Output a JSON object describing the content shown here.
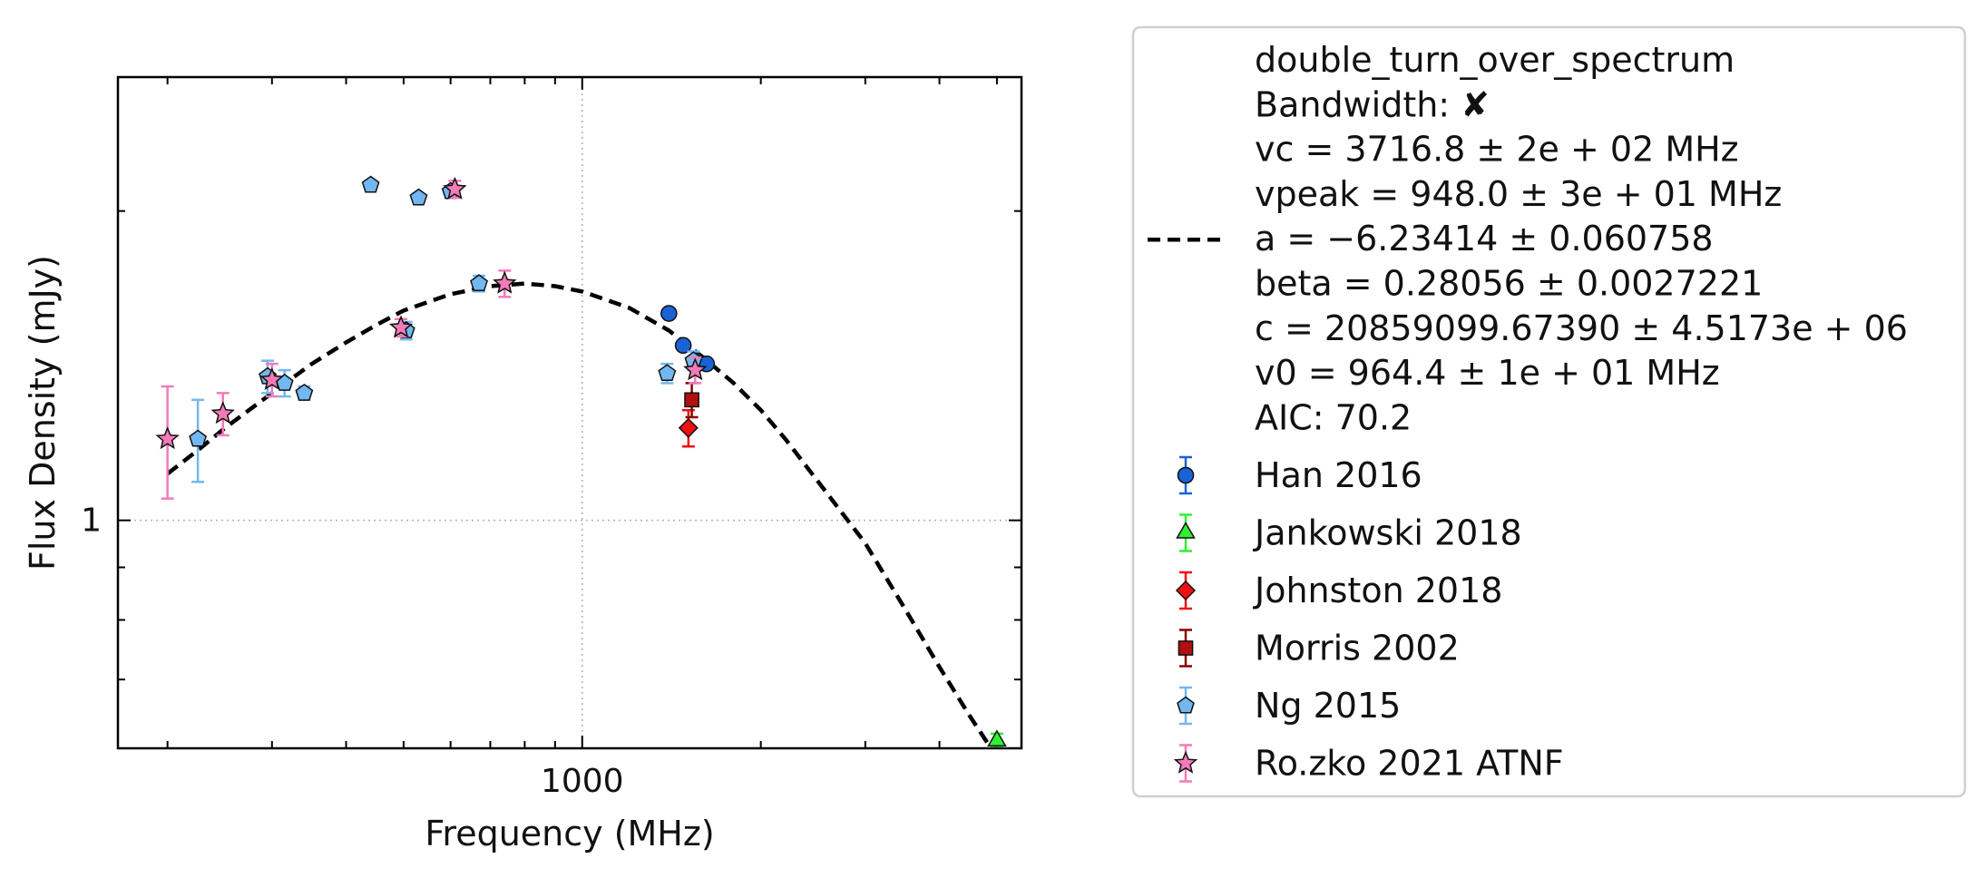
{
  "chart_data": {
    "type": "scatter",
    "xlabel": "Frequency (MHz)",
    "ylabel": "Flux Density (mJy)",
    "x_scale": "log",
    "y_scale": "log",
    "xlim": [
      165,
      5500
    ],
    "ylim": [
      0.6,
      2.7
    ],
    "x_ticks": [
      {
        "value": 1000,
        "label": "1000"
      }
    ],
    "y_ticks": [
      {
        "value": 1,
        "label": "1"
      }
    ],
    "grid": "major",
    "legend_position": "right",
    "fit": {
      "name": "double_turn_over_spectrum",
      "style": "dashed",
      "color": "#000000",
      "params": {
        "vc": 3716.8,
        "vpeak": 948.0,
        "beta": 0.28056,
        "v0": 964.4
      },
      "curve": [
        [
          200,
          1.11
        ],
        [
          225,
          1.17
        ],
        [
          250,
          1.23
        ],
        [
          300,
          1.33
        ],
        [
          350,
          1.42
        ],
        [
          400,
          1.49
        ],
        [
          450,
          1.55
        ],
        [
          500,
          1.6
        ],
        [
          600,
          1.66
        ],
        [
          700,
          1.69
        ],
        [
          800,
          1.7
        ],
        [
          900,
          1.69
        ],
        [
          1000,
          1.67
        ],
        [
          1200,
          1.61
        ],
        [
          1400,
          1.53
        ],
        [
          1600,
          1.44
        ],
        [
          1800,
          1.36
        ],
        [
          2000,
          1.28
        ],
        [
          2200,
          1.2
        ],
        [
          2500,
          1.09
        ],
        [
          3000,
          0.95
        ],
        [
          3500,
          0.82
        ],
        [
          4000,
          0.72
        ],
        [
          4500,
          0.645
        ],
        [
          5000,
          0.588
        ]
      ]
    },
    "series": [
      {
        "name": "Han 2016",
        "marker": "circle",
        "color": "#1a62d6",
        "errcolor": "#1a62d6",
        "points": [
          [
            1400,
            1.59,
            0
          ],
          [
            1480,
            1.48,
            0
          ],
          [
            1550,
            1.43,
            0
          ],
          [
            1620,
            1.42,
            0
          ]
        ]
      },
      {
        "name": "Jankowski 2018",
        "marker": "triangle",
        "color": "#33ee33",
        "errcolor": "#33ee33",
        "points": [
          [
            5000,
            0.61,
            0.01
          ]
        ]
      },
      {
        "name": "Johnston 2018",
        "marker": "diamond",
        "color": "#ee1111",
        "errcolor": "#ee1111",
        "points": [
          [
            1510,
            1.23,
            0.05
          ]
        ]
      },
      {
        "name": "Morris 2002",
        "marker": "square",
        "color": "#b01010",
        "errcolor": "#8b0000",
        "points": [
          [
            1530,
            1.31,
            0.05
          ]
        ]
      },
      {
        "name": "Ng 2015",
        "marker": "pentagon",
        "color": "#73b7f0",
        "errcolor": "#73b7f0",
        "points": [
          [
            225,
            1.2,
            0.11
          ],
          [
            295,
            1.38,
            0.05
          ],
          [
            315,
            1.36,
            0.04
          ],
          [
            340,
            1.33,
            0.02
          ],
          [
            440,
            2.12,
            0.02
          ],
          [
            505,
            1.53,
            0.03
          ],
          [
            530,
            2.06,
            0.02
          ],
          [
            600,
            2.09,
            0.02
          ],
          [
            670,
            1.7,
            0.03
          ],
          [
            1390,
            1.39,
            0.03
          ],
          [
            1540,
            1.43,
            0.03
          ]
        ]
      },
      {
        "name": "Ro.zko 2021 ATNF",
        "marker": "star",
        "color": "#f27bb8",
        "errcolor": "#f27bb8",
        "points": [
          [
            200,
            1.2,
            0.15
          ],
          [
            248,
            1.27,
            0.06
          ],
          [
            300,
            1.37,
            0.05
          ],
          [
            495,
            1.54,
            0.03
          ],
          [
            610,
            2.1,
            0.04
          ],
          [
            740,
            1.7,
            0.05
          ],
          [
            1550,
            1.4,
            0.04
          ]
        ]
      }
    ]
  },
  "legend": {
    "fit_lines": [
      "double_turn_over_spectrum",
      "Bandwidth: ✘",
      "vc = 3716.8 ± 2e + 02 MHz",
      "vpeak = 948.0 ± 3e + 01 MHz",
      "a = −6.23414 ± 0.060758",
      "beta = 0.28056 ± 0.0027221",
      "c = 20859099.67390 ± 4.5173e + 06",
      "v0 = 964.4 ± 1e + 01 MHz",
      "AIC: 70.2"
    ]
  }
}
